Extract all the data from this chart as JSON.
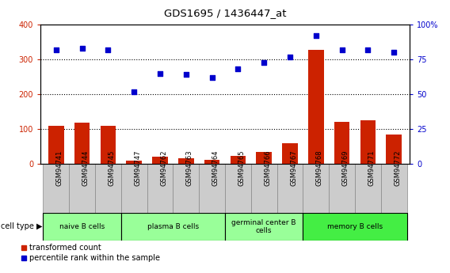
{
  "title": "GDS1695 / 1436447_at",
  "samples": [
    "GSM94741",
    "GSM94744",
    "GSM94745",
    "GSM94747",
    "GSM94762",
    "GSM94763",
    "GSM94764",
    "GSM94765",
    "GSM94766",
    "GSM94767",
    "GSM94768",
    "GSM94769",
    "GSM94771",
    "GSM94772"
  ],
  "transformed_count": [
    110,
    118,
    110,
    8,
    20,
    15,
    12,
    22,
    35,
    60,
    328,
    120,
    125,
    83
  ],
  "percentile_rank": [
    82,
    83,
    82,
    52,
    65,
    64,
    62,
    68,
    73,
    77,
    92,
    82,
    82,
    80
  ],
  "ylim_left": [
    0,
    400
  ],
  "ylim_right": [
    0,
    100
  ],
  "yticks_left": [
    0,
    100,
    200,
    300,
    400
  ],
  "yticks_right": [
    0,
    25,
    50,
    75,
    100
  ],
  "ytick_labels_right": [
    "0",
    "25",
    "50",
    "75",
    "100%"
  ],
  "bar_color": "#cc2200",
  "scatter_color": "#0000cc",
  "cell_groups": [
    {
      "label": "naive B cells",
      "start": 0,
      "end": 3,
      "color": "#99ff99"
    },
    {
      "label": "plasma B cells",
      "start": 3,
      "end": 7,
      "color": "#99ff99"
    },
    {
      "label": "germinal center B\ncells",
      "start": 7,
      "end": 10,
      "color": "#99ff99"
    },
    {
      "label": "memory B cells",
      "start": 10,
      "end": 14,
      "color": "#44ee44"
    }
  ],
  "tick_label_color_left": "#cc2200",
  "tick_label_color_right": "#0000cc",
  "legend_items": [
    {
      "color": "#cc2200",
      "marker": "s",
      "label": "transformed count"
    },
    {
      "color": "#0000cc",
      "marker": "s",
      "label": "percentile rank within the sample"
    }
  ]
}
